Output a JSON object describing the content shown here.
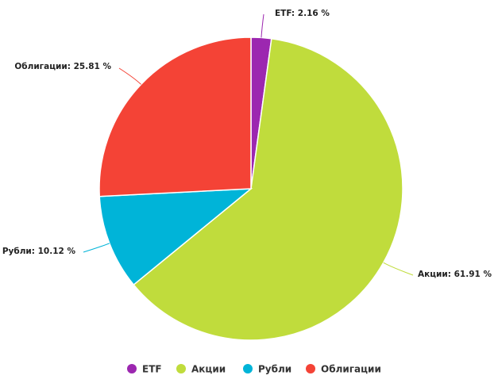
{
  "chart_data": {
    "type": "pie",
    "title": "",
    "legend_placement": "bottom",
    "slices": [
      {
        "label": "ETF",
        "value": 2.16,
        "display": "ETF: 2.16 %",
        "color": "#9c27b0"
      },
      {
        "label": "Акции",
        "value": 61.91,
        "display": "Акции: 61.91 %",
        "color": "#c0dc3c"
      },
      {
        "label": "Рубли",
        "value": 10.12,
        "display": "Рубли: 10.12 %",
        "color": "#00b4d8"
      },
      {
        "label": "Облигации",
        "value": 25.81,
        "display": "Облигации: 25.81 %",
        "color": "#f44336"
      }
    ]
  }
}
